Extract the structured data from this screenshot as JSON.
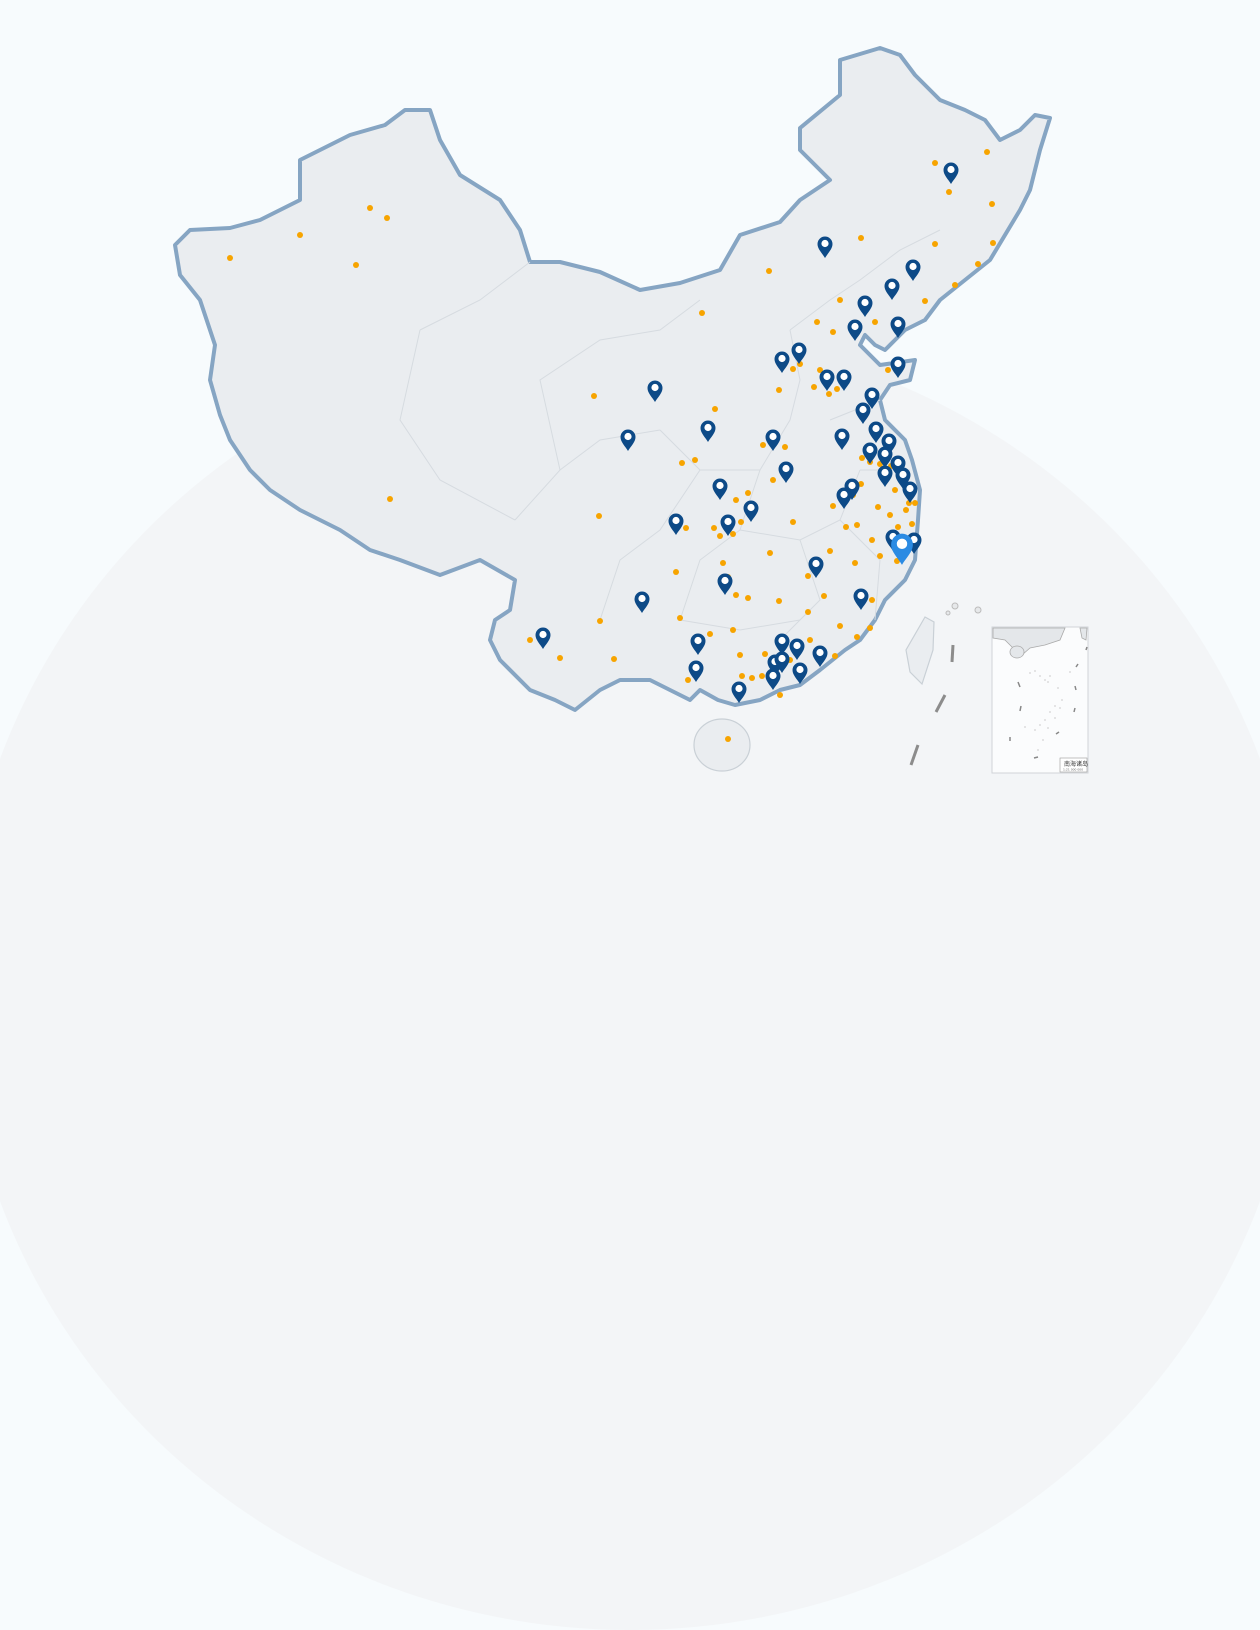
{
  "map": {
    "region": "China",
    "land_color": "#eaedf0",
    "border_color": "#86a5c3",
    "province_line_color": "#d6dbe0",
    "marker_color": "#0d4a87",
    "highlight_marker_color": "#2b8be3",
    "dot_color": "#f7a400",
    "marker_icon": "map-pin-icon",
    "highlighted_marker_count": 1
  },
  "inset": {
    "label": "南海诸岛",
    "scale": "1:21 000 000"
  }
}
